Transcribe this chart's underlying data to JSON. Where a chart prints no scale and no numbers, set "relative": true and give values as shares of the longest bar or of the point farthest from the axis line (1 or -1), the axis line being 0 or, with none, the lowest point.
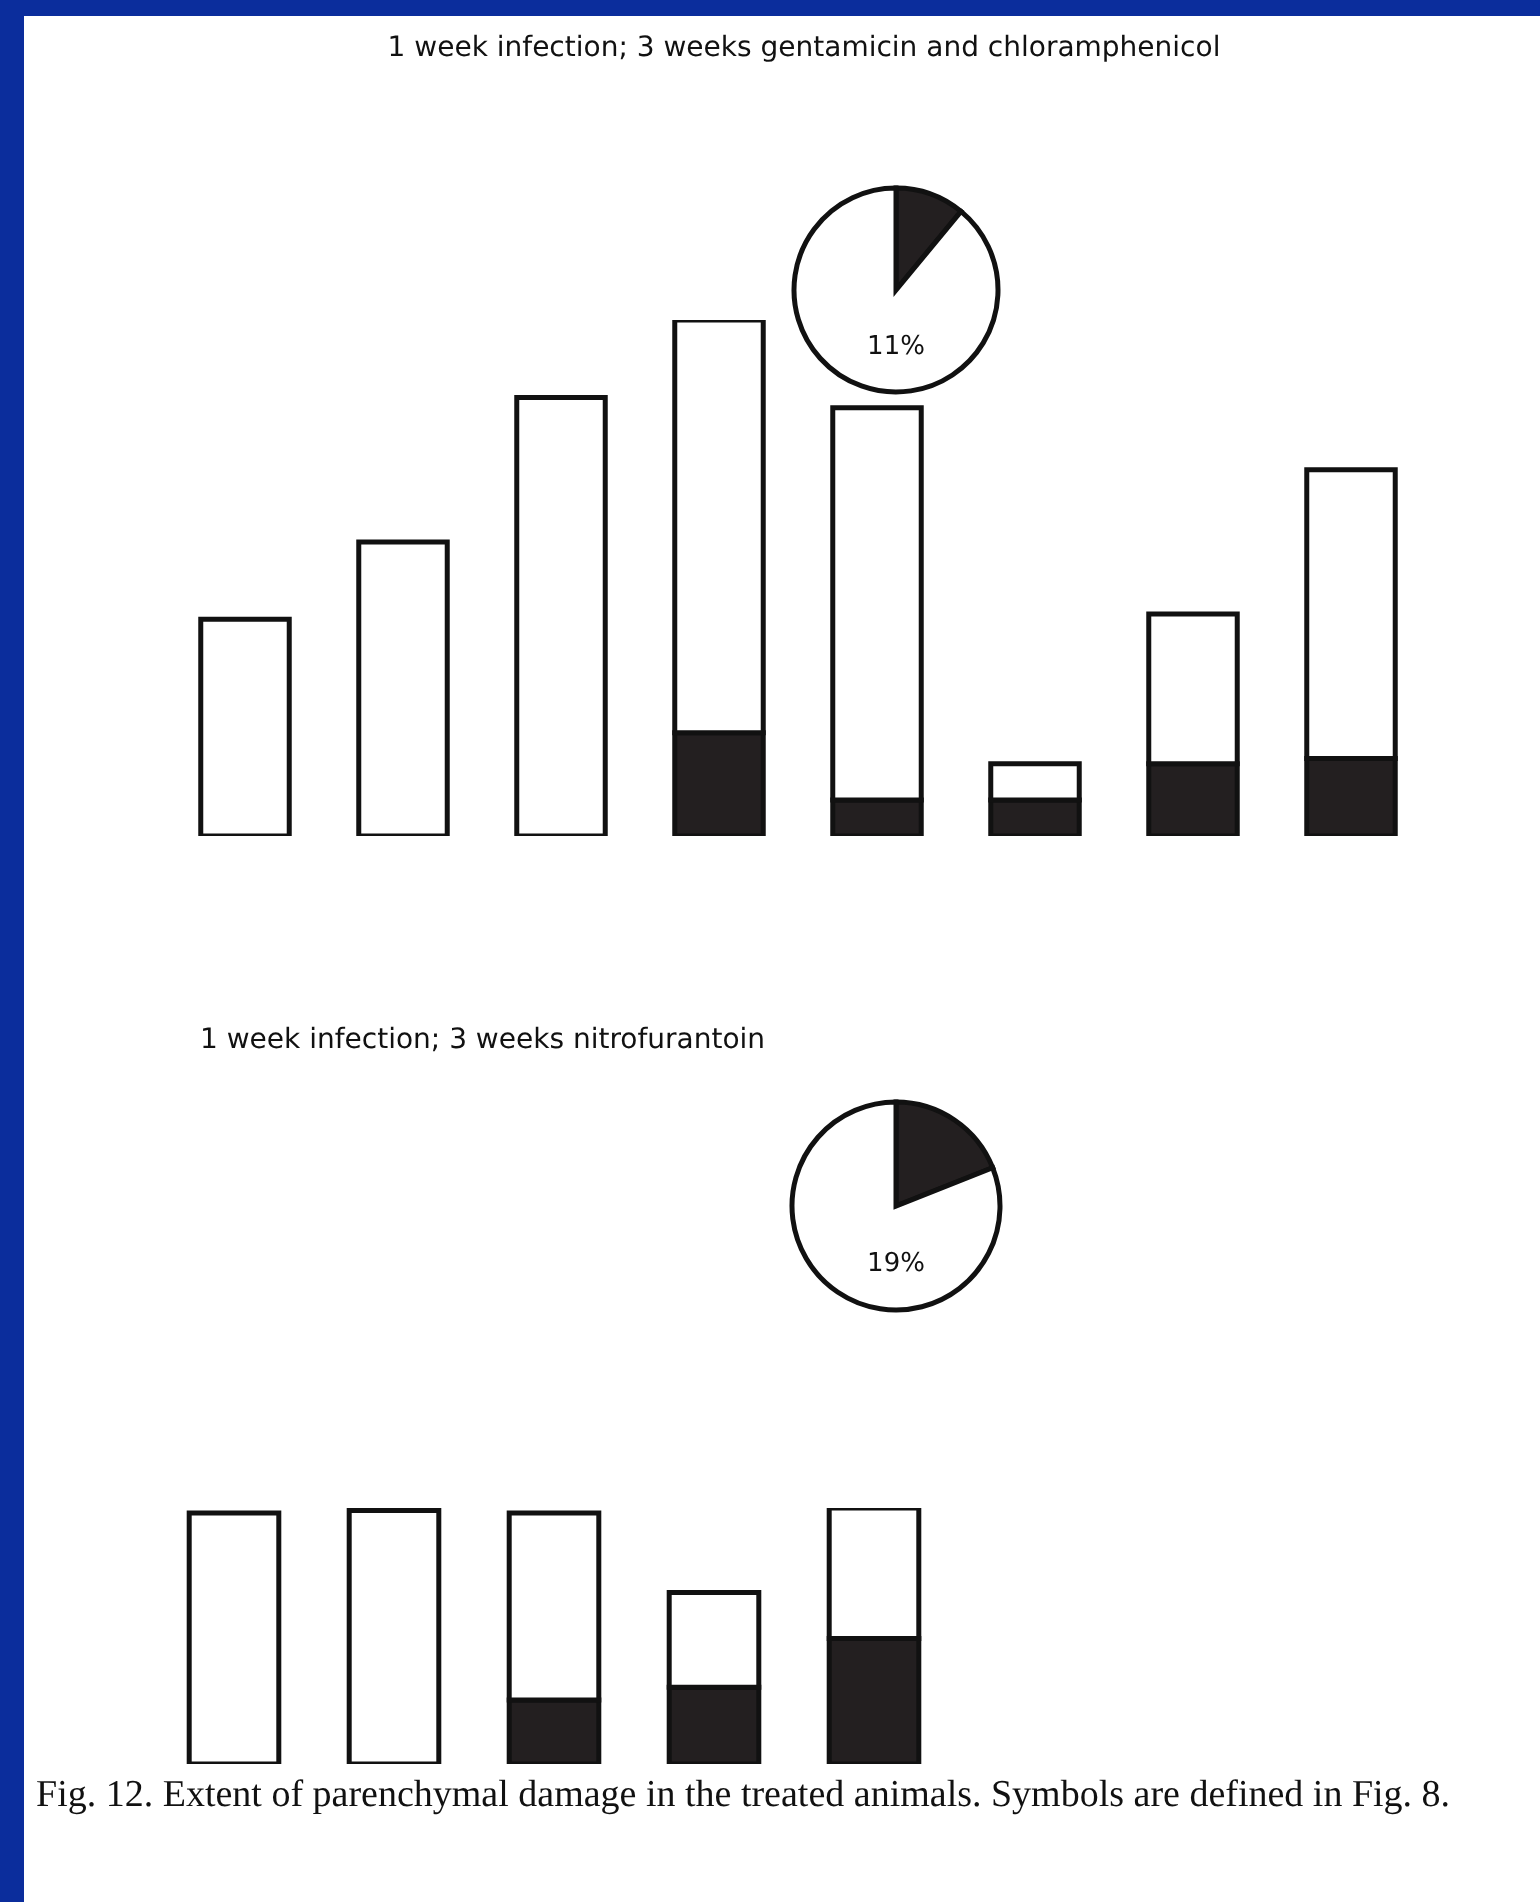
{
  "chart_data": [
    {
      "type": "pie",
      "title": "1 week infection; 3 weeks gentamicin and chloramphenicol",
      "categories": [
        null,
        null
      ],
      "values": [
        11,
        89
      ],
      "colors": [
        "#231f20",
        "#ffffff"
      ],
      "annotations": [
        "11%"
      ]
    },
    {
      "type": "bar",
      "relative": true,
      "stacked": true,
      "categories": [
        null,
        null,
        null,
        null,
        null,
        null,
        null,
        null
      ],
      "series": [
        {
          "color": "#231f20",
          "values": [
            0,
            0,
            0,
            0.2,
            0.07,
            0.07,
            0.14,
            0.15
          ]
        },
        {
          "color": "#ffffff",
          "values": [
            0.42,
            0.57,
            0.85,
            0.8,
            0.76,
            0.07,
            0.29,
            0.56
          ]
        }
      ]
    },
    {
      "type": "pie",
      "title": "1 week infection; 3 weeks nitrofurantoin",
      "categories": [
        null,
        null
      ],
      "values": [
        19,
        81
      ],
      "colors": [
        "#231f20",
        "#ffffff"
      ],
      "annotations": [
        "19%"
      ]
    },
    {
      "type": "bar",
      "relative": true,
      "stacked": true,
      "categories": [
        null,
        null,
        null,
        null,
        null
      ],
      "series": [
        {
          "color": "#231f20",
          "values": [
            0,
            0,
            0.25,
            0.3,
            0.49
          ]
        },
        {
          "color": "#ffffff",
          "values": [
            0.98,
            0.99,
            0.73,
            0.37,
            0.51
          ]
        }
      ],
      "annotations": [
        "Fig. 12. Extent of parenchymal damage in the treated animals. Symbols are defined in Fig. 8."
      ]
    }
  ]
}
